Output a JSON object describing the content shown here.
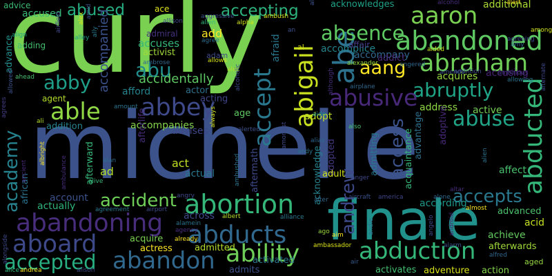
{
  "words": [
    {
      "text": "curly",
      "color": "#7ad151"
    },
    {
      "text": "michelle",
      "color": "#3b528b"
    },
    {
      "text": "finale",
      "color": "#21918c"
    },
    {
      "text": "abandoning",
      "color": "#472d7b"
    },
    {
      "text": "abortion",
      "color": "#35b779"
    },
    {
      "text": "abandoned",
      "color": "#5ec962"
    },
    {
      "text": "abducts",
      "color": "#31688e"
    },
    {
      "text": "ability",
      "color": "#6ece58"
    },
    {
      "text": "abduction",
      "color": "#35b779"
    },
    {
      "text": "abandon",
      "color": "#31688e"
    },
    {
      "text": "aboard",
      "color": "#3e4989"
    },
    {
      "text": "accepted",
      "color": "#28ae80"
    },
    {
      "text": "abigail",
      "color": "#c8e020"
    },
    {
      "text": "abe",
      "color": "#2c728e"
    },
    {
      "text": "abducted",
      "color": "#35b779"
    },
    {
      "text": "abraham",
      "color": "#6ece58"
    },
    {
      "text": "aaron",
      "color": "#7ad151"
    },
    {
      "text": "absence",
      "color": "#5ec962"
    },
    {
      "text": "abused",
      "color": "#26ad81"
    },
    {
      "text": "accepting",
      "color": "#2db27d"
    },
    {
      "text": "abby",
      "color": "#1f9e89"
    },
    {
      "text": "able",
      "color": "#8fd744"
    },
    {
      "text": "abbey",
      "color": "#3e4a89"
    },
    {
      "text": "abu",
      "color": "#228d8d"
    },
    {
      "text": "abruptly",
      "color": "#20a486"
    },
    {
      "text": "abusive",
      "color": "#482878"
    },
    {
      "text": "abuse",
      "color": "#20a386"
    },
    {
      "text": "accept",
      "color": "#2a788e"
    },
    {
      "text": "aang",
      "color": "#fde725"
    },
    {
      "text": "academy",
      "color": "#26828e"
    },
    {
      "text": "accident",
      "color": "#6ece58"
    },
    {
      "text": "accepts",
      "color": "#2a788e"
    },
    {
      "text": "access",
      "color": "#3b528b"
    },
    {
      "text": "andrew",
      "color": "#3e4989"
    },
    {
      "text": "accompanies",
      "color": "#84d44b"
    },
    {
      "text": "accidentally",
      "color": "#5ec962"
    },
    {
      "text": "accompanied",
      "color": "#3b528b"
    },
    {
      "text": "accuses",
      "color": "#35b779"
    },
    {
      "text": "activist",
      "color": "#a0da39"
    },
    {
      "text": "accompany",
      "color": "#31688e"
    },
    {
      "text": "accomplice",
      "color": "#25858e"
    },
    {
      "text": "acquires",
      "color": "#95d840"
    },
    {
      "text": "accusing",
      "color": "#482173"
    },
    {
      "text": "acknowledges",
      "color": "#1fa187"
    },
    {
      "text": "additional",
      "color": "#a8db34"
    },
    {
      "text": "advice",
      "color": "#3dbc74"
    },
    {
      "text": "accused",
      "color": "#3aba76"
    },
    {
      "text": "ace",
      "color": "#dde318"
    },
    {
      "text": "adding",
      "color": "#44bf70"
    },
    {
      "text": "advance",
      "color": "#218f8d"
    },
    {
      "text": "afford",
      "color": "#25848e"
    },
    {
      "text": "actor",
      "color": "#2d708e"
    },
    {
      "text": "acting",
      "color": "#3f4788"
    },
    {
      "text": "adam",
      "color": "#3e4a89"
    },
    {
      "text": "add",
      "color": "#fde725"
    },
    {
      "text": "admiral",
      "color": "#46327e"
    },
    {
      "text": "agent",
      "color": "#b5de2b"
    },
    {
      "text": "age",
      "color": "#5ec962"
    },
    {
      "text": "active",
      "color": "#75d054"
    },
    {
      "text": "address",
      "color": "#8fd744"
    },
    {
      "text": "advantage",
      "color": "#2d708e"
    },
    {
      "text": "adoptive",
      "color": "#482878"
    },
    {
      "text": "acquaintance",
      "color": "#35b779"
    },
    {
      "text": "admitting",
      "color": "#2a788e"
    },
    {
      "text": "adopt",
      "color": "#bddf26"
    },
    {
      "text": "addition",
      "color": "#26828e"
    },
    {
      "text": "afterlife",
      "color": "#472c7a"
    },
    {
      "text": "advises",
      "color": "#3f4889"
    },
    {
      "text": "act",
      "color": "#c2df23"
    },
    {
      "text": "actual",
      "color": "#2a788e"
    },
    {
      "text": "ad",
      "color": "#b5de2b"
    },
    {
      "text": "afterward",
      "color": "#35b779"
    },
    {
      "text": "aftermath",
      "color": "#3e4a89"
    },
    {
      "text": "acknowledge",
      "color": "#25838e"
    },
    {
      "text": "adopted",
      "color": "#453781"
    },
    {
      "text": "affect",
      "color": "#48c16e"
    },
    {
      "text": "adult",
      "color": "#d2e21b"
    },
    {
      "text": "according",
      "color": "#1f988b"
    },
    {
      "text": "account",
      "color": "#3b528b"
    },
    {
      "text": "actually",
      "color": "#2fb47c"
    },
    {
      "text": "african",
      "color": "#2c728e"
    },
    {
      "text": "across",
      "color": "#3e4a89"
    },
    {
      "text": "acquire",
      "color": "#7ad151"
    },
    {
      "text": "actress",
      "color": "#fde725"
    },
    {
      "text": "admitted",
      "color": "#b5de2b"
    },
    {
      "text": "admits",
      "color": "#3b528b"
    },
    {
      "text": "activated",
      "color": "#2a788e"
    },
    {
      "text": "adventure",
      "color": "#d8e219"
    },
    {
      "text": "action",
      "color": "#84d44b"
    },
    {
      "text": "activates",
      "color": "#44bf70"
    },
    {
      "text": "aged",
      "color": "#95d840"
    },
    {
      "text": "afterwards",
      "color": "#a0da39"
    },
    {
      "text": "achieve",
      "color": "#63cb5f"
    },
    {
      "text": "advanced",
      "color": "#4ac16d"
    },
    {
      "text": "acid",
      "color": "#c8e020"
    },
    {
      "text": "ambassador",
      "color": "#dde318"
    },
    {
      "text": "aim",
      "color": "#fde725"
    },
    {
      "text": "air",
      "color": "#38598c"
    },
    {
      "text": "agrees",
      "color": "#433e85"
    },
    {
      "text": "alcohol",
      "color": "#472d7b"
    },
    {
      "text": "alien",
      "color": "#2c728e"
    },
    {
      "text": "alive",
      "color": "#38b977"
    },
    {
      "text": "alan",
      "color": "#2e6e8e"
    },
    {
      "text": "allowing",
      "color": "#2c728e"
    },
    {
      "text": "ambitious",
      "color": "#443983"
    },
    {
      "text": "ambition",
      "color": "#3e4a89"
    },
    {
      "text": "amends",
      "color": "#3b528b"
    },
    {
      "text": "among",
      "color": "#d2e21b"
    },
    {
      "text": "aided",
      "color": "#c8e020"
    },
    {
      "text": "agreeing",
      "color": "#3e4a89"
    },
    {
      "text": "alexander",
      "color": "#95d840"
    },
    {
      "text": "angered",
      "color": "#31688e"
    },
    {
      "text": "airplane",
      "color": "#31688e"
    },
    {
      "text": "although",
      "color": "#472d7b"
    },
    {
      "text": "allows",
      "color": "#d8e219"
    },
    {
      "text": "alpha",
      "color": "#d2e21b"
    },
    {
      "text": "aggressive",
      "color": "#3b528b"
    },
    {
      "text": "ambush",
      "color": "#d8e219"
    },
    {
      "text": "allen",
      "color": "#32b67a"
    },
    {
      "text": "agree",
      "color": "#2e6e8e"
    },
    {
      "text": "ahead",
      "color": "#4ac16d"
    },
    {
      "text": "align",
      "color": "#20a386"
    },
    {
      "text": "alley",
      "color": "#1fa187"
    },
    {
      "text": "aircraft",
      "color": "#3b528b"
    },
    {
      "text": "america",
      "color": "#404688"
    },
    {
      "text": "alone",
      "color": "#31688e"
    },
    {
      "text": "alter",
      "color": "#31688e"
    },
    {
      "text": "altar",
      "color": "#472d7b"
    },
    {
      "text": "almost",
      "color": "#fde725"
    },
    {
      "text": "alfred",
      "color": "#31688e"
    },
    {
      "text": "alarm",
      "color": "#3b528b"
    },
    {
      "text": "android",
      "color": "#481f70"
    },
    {
      "text": "angelo",
      "color": "#3e4a89"
    },
    {
      "text": "andie",
      "color": "#2c728e"
    },
    {
      "text": "ago",
      "color": "#95d840"
    },
    {
      "text": "anger",
      "color": "#3e4a89"
    },
    {
      "text": "andy",
      "color": "#2c728e"
    },
    {
      "text": "alias",
      "color": "#31688e"
    },
    {
      "text": "also",
      "color": "#48c16e"
    },
    {
      "text": "aide",
      "color": "#21918c"
    },
    {
      "text": "amongst",
      "color": "#3e4a89"
    },
    {
      "text": "alerted",
      "color": "#3b528b"
    },
    {
      "text": "alert",
      "color": "#fde725"
    },
    {
      "text": "alec",
      "color": "#b5de2b"
    },
    {
      "text": "albert",
      "color": "#b5de2b"
    },
    {
      "text": "alliance",
      "color": "#2a788e"
    },
    {
      "text": "alongside",
      "color": "#3e4a89"
    },
    {
      "text": "alice",
      "color": "#35b779"
    },
    {
      "text": "andrea",
      "color": "#fde725"
    },
    {
      "text": "alison",
      "color": "#3e4a89"
    },
    {
      "text": "alamein",
      "color": "#2c728e"
    },
    {
      "text": "agency",
      "color": "#472d7b"
    },
    {
      "text": "already",
      "color": "#fde725"
    },
    {
      "text": "airport",
      "color": "#3e4a89"
    },
    {
      "text": "agreement",
      "color": "#2a788e"
    },
    {
      "text": "angry",
      "color": "#3e4a89"
    },
    {
      "text": "albright",
      "color": "#fde725"
    },
    {
      "text": "alex",
      "color": "#d8e219"
    },
    {
      "text": "ambrose",
      "color": "#31688e"
    },
    {
      "text": "allowed",
      "color": "#3b528b"
    },
    {
      "text": "ali",
      "color": "#b5de2b"
    },
    {
      "text": "amount",
      "color": "#2c728e"
    },
    {
      "text": "allison",
      "color": "#3e4a89"
    },
    {
      "text": "amid",
      "color": "#3b528b"
    },
    {
      "text": "airfield",
      "color": "#3e4a89"
    },
    {
      "text": "ally",
      "color": "#2a788e"
    },
    {
      "text": "allow",
      "color": "#3b528b"
    },
    {
      "text": "alternate",
      "color": "#3e4a89"
    },
    {
      "text": "amy",
      "color": "#31688e"
    },
    {
      "text": "affair",
      "color": "#443983"
    },
    {
      "text": "afraid",
      "color": "#2a788e"
    },
    {
      "text": "addict",
      "color": "#482878"
    },
    {
      "text": "al",
      "color": "#d8e219"
    },
    {
      "text": "alcoholic",
      "color": "#3e4a89"
    },
    {
      "text": "ambushed",
      "color": "#2c728e"
    },
    {
      "text": "ambulance",
      "color": "#472d7b"
    },
    {
      "text": "anderson",
      "color": "#3b528b"
    },
    {
      "text": "always",
      "color": "#d2e21b"
    },
    {
      "text": "ancient",
      "color": "#482878"
    },
    {
      "text": "an",
      "color": "#3b528b"
    }
  ]
}
